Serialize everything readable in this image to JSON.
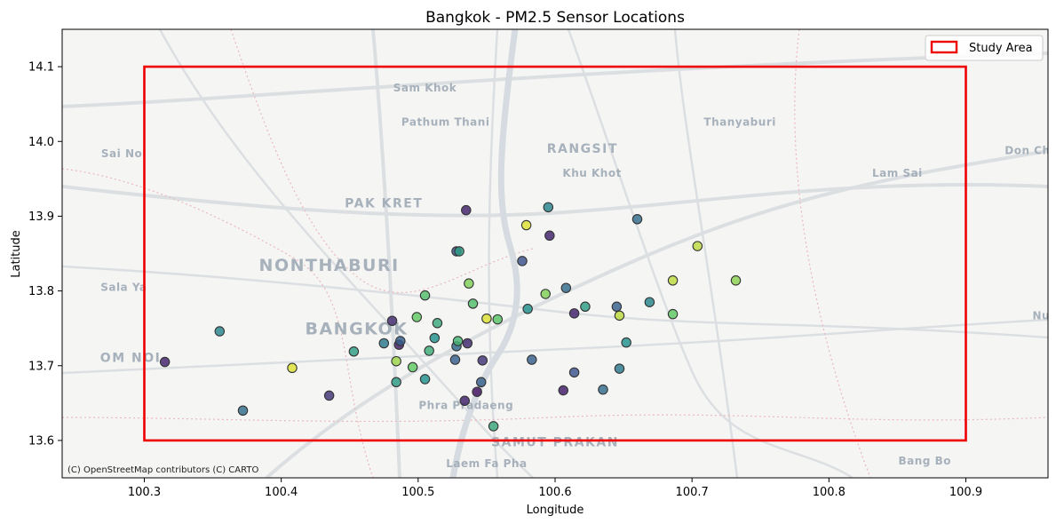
{
  "chart_data": {
    "type": "scatter",
    "title": "Bangkok - PM2.5 Sensor Locations",
    "xlabel": "Longitude",
    "ylabel": "Latitude",
    "xlim": [
      100.24,
      100.96
    ],
    "ylim": [
      13.55,
      14.15
    ],
    "xticks": [
      100.3,
      100.4,
      100.5,
      100.6,
      100.7,
      100.8,
      100.9
    ],
    "yticks": [
      13.6,
      13.7,
      13.8,
      13.9,
      14.0,
      14.1
    ],
    "xtick_labels": [
      "100.3",
      "100.4",
      "100.5",
      "100.6",
      "100.7",
      "100.8",
      "100.9"
    ],
    "ytick_labels": [
      "13.6",
      "13.7",
      "13.8",
      "13.9",
      "14.0",
      "14.1"
    ],
    "study_area": {
      "label": "Study Area",
      "lon_min": 100.3,
      "lon_max": 100.9,
      "lat_min": 13.6,
      "lat_max": 14.1,
      "color": "#ee0000"
    },
    "legend": {
      "placement": "top-right",
      "entries": [
        "Study Area"
      ]
    },
    "attribution": "(C) OpenStreetMap contributors (C) CARTO",
    "colormap": "viridis",
    "points": [
      {
        "lon": 100.315,
        "lat": 13.705,
        "c": 0.1
      },
      {
        "lon": 100.355,
        "lat": 13.746,
        "c": 0.45
      },
      {
        "lon": 100.372,
        "lat": 13.64,
        "c": 0.35
      },
      {
        "lon": 100.408,
        "lat": 13.697,
        "c": 0.95
      },
      {
        "lon": 100.435,
        "lat": 13.66,
        "c": 0.15
      },
      {
        "lon": 100.453,
        "lat": 13.719,
        "c": 0.55
      },
      {
        "lon": 100.475,
        "lat": 13.73,
        "c": 0.4
      },
      {
        "lon": 100.481,
        "lat": 13.76,
        "c": 0.12
      },
      {
        "lon": 100.484,
        "lat": 13.706,
        "c": 0.85
      },
      {
        "lon": 100.484,
        "lat": 13.678,
        "c": 0.55
      },
      {
        "lon": 100.486,
        "lat": 13.728,
        "c": 0.08
      },
      {
        "lon": 100.487,
        "lat": 13.733,
        "c": 0.3
      },
      {
        "lon": 100.496,
        "lat": 13.698,
        "c": 0.75
      },
      {
        "lon": 100.499,
        "lat": 13.765,
        "c": 0.75
      },
      {
        "lon": 100.505,
        "lat": 13.682,
        "c": 0.5
      },
      {
        "lon": 100.505,
        "lat": 13.794,
        "c": 0.7
      },
      {
        "lon": 100.508,
        "lat": 13.72,
        "c": 0.62
      },
      {
        "lon": 100.512,
        "lat": 13.737,
        "c": 0.5
      },
      {
        "lon": 100.514,
        "lat": 13.757,
        "c": 0.6
      },
      {
        "lon": 100.527,
        "lat": 13.708,
        "c": 0.3
      },
      {
        "lon": 100.528,
        "lat": 13.726,
        "c": 0.35
      },
      {
        "lon": 100.528,
        "lat": 13.853,
        "c": 0.25
      },
      {
        "lon": 100.529,
        "lat": 13.733,
        "c": 0.65
      },
      {
        "lon": 100.53,
        "lat": 13.853,
        "c": 0.55
      },
      {
        "lon": 100.534,
        "lat": 13.653,
        "c": 0.1
      },
      {
        "lon": 100.535,
        "lat": 13.908,
        "c": 0.1
      },
      {
        "lon": 100.536,
        "lat": 13.73,
        "c": 0.12
      },
      {
        "lon": 100.537,
        "lat": 13.81,
        "c": 0.8
      },
      {
        "lon": 100.54,
        "lat": 13.783,
        "c": 0.7
      },
      {
        "lon": 100.543,
        "lat": 13.665,
        "c": 0.05
      },
      {
        "lon": 100.546,
        "lat": 13.678,
        "c": 0.3
      },
      {
        "lon": 100.547,
        "lat": 13.707,
        "c": 0.15
      },
      {
        "lon": 100.55,
        "lat": 13.763,
        "c": 0.95
      },
      {
        "lon": 100.555,
        "lat": 13.619,
        "c": 0.6
      },
      {
        "lon": 100.558,
        "lat": 13.762,
        "c": 0.72
      },
      {
        "lon": 100.576,
        "lat": 13.84,
        "c": 0.25
      },
      {
        "lon": 100.579,
        "lat": 13.888,
        "c": 0.95
      },
      {
        "lon": 100.58,
        "lat": 13.776,
        "c": 0.5
      },
      {
        "lon": 100.583,
        "lat": 13.708,
        "c": 0.3
      },
      {
        "lon": 100.593,
        "lat": 13.796,
        "c": 0.8
      },
      {
        "lon": 100.595,
        "lat": 13.912,
        "c": 0.45
      },
      {
        "lon": 100.596,
        "lat": 13.874,
        "c": 0.1
      },
      {
        "lon": 100.606,
        "lat": 13.667,
        "c": 0.08
      },
      {
        "lon": 100.608,
        "lat": 13.804,
        "c": 0.35
      },
      {
        "lon": 100.614,
        "lat": 13.77,
        "c": 0.1
      },
      {
        "lon": 100.614,
        "lat": 13.691,
        "c": 0.25
      },
      {
        "lon": 100.622,
        "lat": 13.779,
        "c": 0.55
      },
      {
        "lon": 100.635,
        "lat": 13.668,
        "c": 0.35
      },
      {
        "lon": 100.645,
        "lat": 13.779,
        "c": 0.3
      },
      {
        "lon": 100.647,
        "lat": 13.767,
        "c": 0.9
      },
      {
        "lon": 100.647,
        "lat": 13.696,
        "c": 0.4
      },
      {
        "lon": 100.652,
        "lat": 13.731,
        "c": 0.5
      },
      {
        "lon": 100.66,
        "lat": 13.896,
        "c": 0.35
      },
      {
        "lon": 100.669,
        "lat": 13.785,
        "c": 0.45
      },
      {
        "lon": 100.686,
        "lat": 13.769,
        "c": 0.75
      },
      {
        "lon": 100.686,
        "lat": 13.814,
        "c": 0.9
      },
      {
        "lon": 100.704,
        "lat": 13.86,
        "c": 0.9
      },
      {
        "lon": 100.732,
        "lat": 13.814,
        "c": 0.82
      }
    ]
  },
  "basemap": {
    "places": [
      {
        "name": "Sam Khok",
        "lon": 100.505,
        "lat": 14.067
      },
      {
        "name": "Pathum Thani",
        "lon": 100.52,
        "lat": 14.021
      },
      {
        "name": "Thanyaburi",
        "lon": 100.735,
        "lat": 14.021
      },
      {
        "name": "Sai Noi",
        "lon": 100.285,
        "lat": 13.979
      },
      {
        "name": "RANGSIT",
        "lon": 100.62,
        "lat": 13.985
      },
      {
        "name": "Khu Khot",
        "lon": 100.627,
        "lat": 13.953
      },
      {
        "name": "Lam Sai",
        "lon": 100.85,
        "lat": 13.953
      },
      {
        "name": "Don Ch",
        "lon": 100.945,
        "lat": 13.983
      },
      {
        "name": "PAK KRET",
        "lon": 100.475,
        "lat": 13.912
      },
      {
        "name": "NONTHABURI",
        "lon": 100.435,
        "lat": 13.827
      },
      {
        "name": "Sala Ya",
        "lon": 100.285,
        "lat": 13.8
      },
      {
        "name": "BANGKOK",
        "lon": 100.455,
        "lat": 13.742
      },
      {
        "name": "Nu",
        "lon": 100.955,
        "lat": 13.762
      },
      {
        "name": "OM NOI",
        "lon": 100.29,
        "lat": 13.705
      },
      {
        "name": "Phra Pradaeng",
        "lon": 100.535,
        "lat": 13.642
      },
      {
        "name": "SAMUT PRAKAN",
        "lon": 100.6,
        "lat": 13.592
      },
      {
        "name": "Laem Fa Pha",
        "lon": 100.55,
        "lat": 13.564
      },
      {
        "name": "Bang Bo",
        "lon": 100.87,
        "lat": 13.568
      }
    ]
  }
}
